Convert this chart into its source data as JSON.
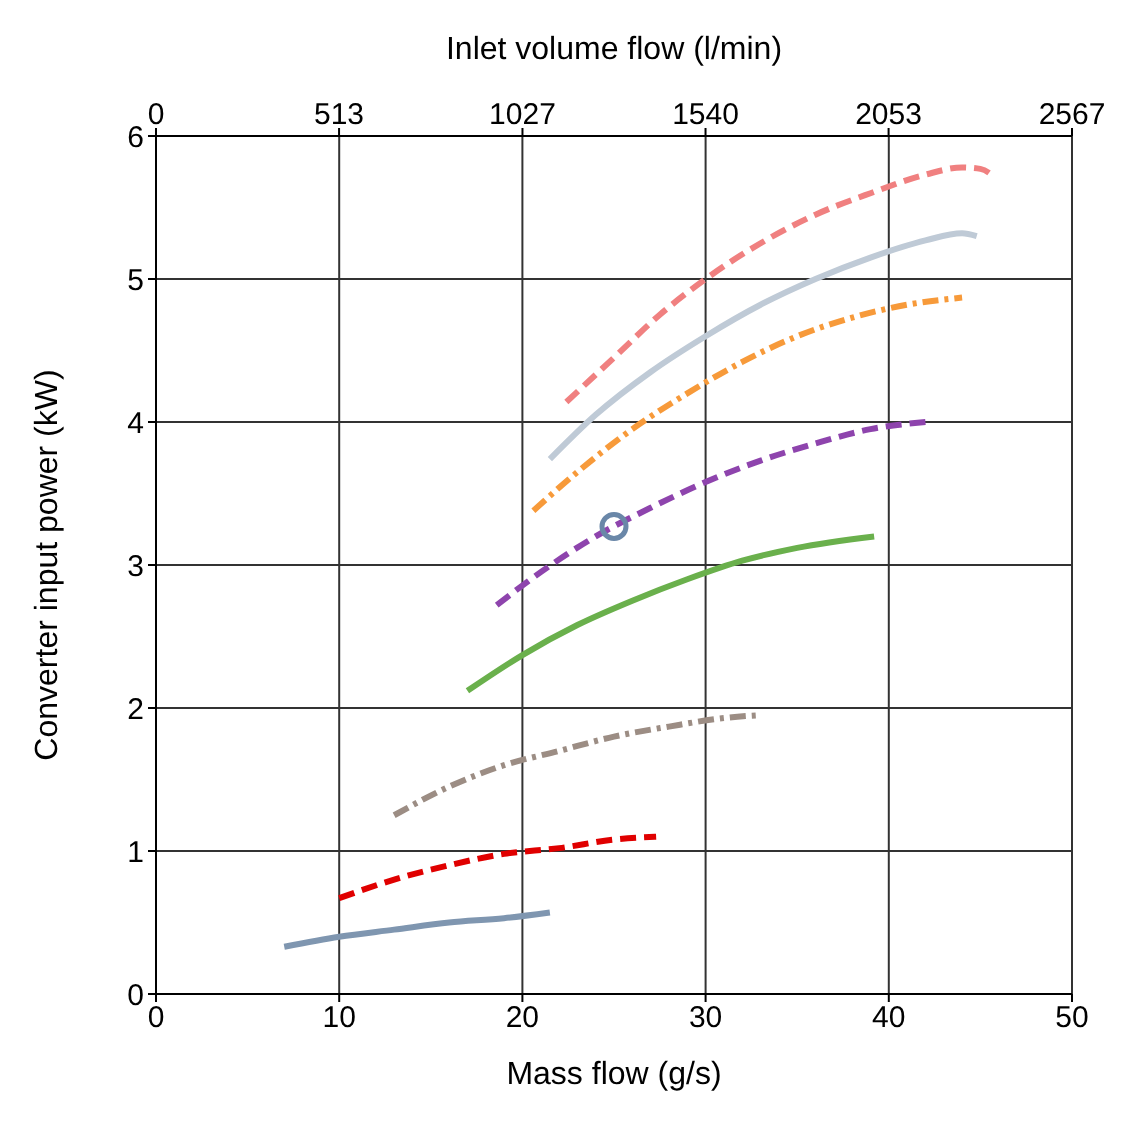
{
  "chart_data": {
    "type": "line",
    "xlabel": "Mass flow (g/s)",
    "ylabel": "Converter input power (kW)",
    "x2label": "Inlet volume flow (l/min)",
    "xlim": [
      0,
      50
    ],
    "xticks": [
      0,
      10,
      20,
      30,
      40,
      50
    ],
    "ylim": [
      0,
      6
    ],
    "yticks": [
      0,
      1,
      2,
      3,
      4,
      5,
      6
    ],
    "x2lim": [
      0,
      2567
    ],
    "x2ticks": [
      0,
      513,
      1027,
      1540,
      2053,
      2567
    ],
    "grid": true,
    "legend": false,
    "marker": "none",
    "series": [
      {
        "color": "#7f96b0",
        "line_style": "solid",
        "x": [
          7,
          10,
          13,
          16,
          19,
          21.5
        ],
        "values": [
          0.33,
          0.4,
          0.45,
          0.5,
          0.53,
          0.57
        ]
      },
      {
        "color": "#e00000",
        "line_style": "dashed",
        "x": [
          10,
          13,
          16,
          19,
          22,
          25,
          27.3
        ],
        "values": [
          0.67,
          0.8,
          0.9,
          0.98,
          1.02,
          1.08,
          1.1
        ]
      },
      {
        "color": "#9c8d84",
        "line_style": "dashdot",
        "x": [
          13,
          16,
          19,
          22,
          25,
          28,
          31,
          33
        ],
        "values": [
          1.25,
          1.45,
          1.6,
          1.7,
          1.8,
          1.87,
          1.93,
          1.95
        ]
      },
      {
        "color": "#6ab04c",
        "line_style": "solid",
        "x": [
          17,
          20,
          23,
          26,
          29,
          32,
          35,
          39.2
        ],
        "values": [
          2.12,
          2.37,
          2.58,
          2.75,
          2.9,
          3.03,
          3.12,
          3.2
        ]
      },
      {
        "color": "#8e44ad",
        "line_style": "dashed",
        "x": [
          18.6,
          21,
          24,
          27,
          30,
          33,
          36,
          39,
          42
        ],
        "values": [
          2.72,
          2.95,
          3.2,
          3.4,
          3.58,
          3.73,
          3.85,
          3.95,
          4.0
        ]
      },
      {
        "color": "#f79a3a",
        "line_style": "dashdot",
        "x": [
          20.6,
          23,
          26,
          29,
          32,
          35,
          38,
          41,
          44
        ],
        "values": [
          3.38,
          3.65,
          3.95,
          4.2,
          4.42,
          4.6,
          4.73,
          4.82,
          4.87
        ]
      },
      {
        "color": "#bfcad6",
        "line_style": "solid",
        "x": [
          21.5,
          24,
          27,
          30,
          33,
          36,
          39,
          42,
          44,
          44.8
        ],
        "values": [
          3.74,
          4.05,
          4.35,
          4.6,
          4.82,
          5.0,
          5.15,
          5.27,
          5.32,
          5.3
        ]
      },
      {
        "color": "#f08080",
        "line_style": "dashed",
        "x": [
          22.4,
          25,
          27.5,
          30,
          33,
          36,
          39,
          42,
          44,
          45,
          45.8
        ],
        "values": [
          4.14,
          4.45,
          4.75,
          5.0,
          5.25,
          5.45,
          5.6,
          5.73,
          5.78,
          5.77,
          5.71
        ]
      },
      {
        "type": "scatter",
        "color": "#6a87a8",
        "marker": "circle",
        "x": [
          25
        ],
        "values": [
          3.27
        ]
      }
    ]
  }
}
